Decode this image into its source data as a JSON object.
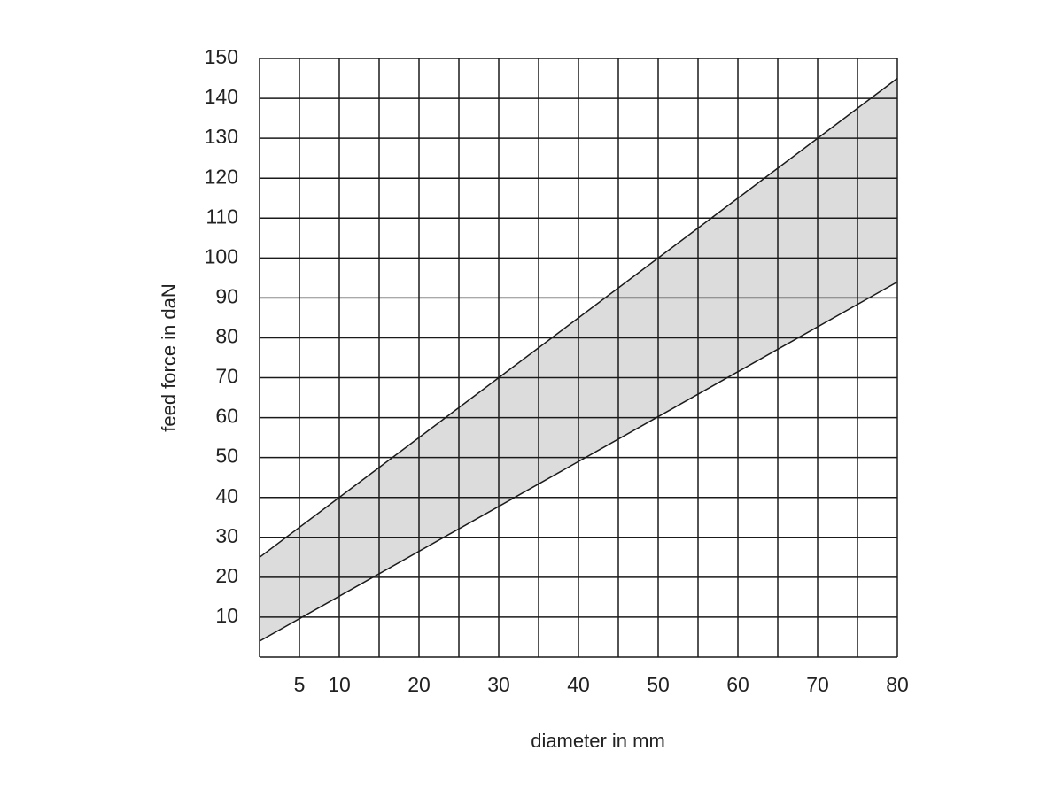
{
  "chart_data": {
    "type": "band",
    "x_label": "diameter in mm",
    "y_label": "feed force in daN",
    "x": [
      0,
      80
    ],
    "upper": [
      25,
      145
    ],
    "lower": [
      4,
      94
    ],
    "fill": "#dcdcdc",
    "line_color": "#1a1a1a",
    "xlim": [
      0,
      80
    ],
    "xticks": [
      5,
      10,
      20,
      30,
      40,
      50,
      60,
      70,
      80
    ],
    "xgrid": [
      0,
      5,
      10,
      15,
      20,
      25,
      30,
      35,
      40,
      45,
      50,
      55,
      60,
      65,
      70,
      75,
      80
    ],
    "ylim": [
      0,
      150
    ],
    "yticks": [
      10,
      20,
      30,
      40,
      50,
      60,
      70,
      80,
      90,
      100,
      110,
      120,
      130,
      140,
      150
    ],
    "grid": true
  }
}
